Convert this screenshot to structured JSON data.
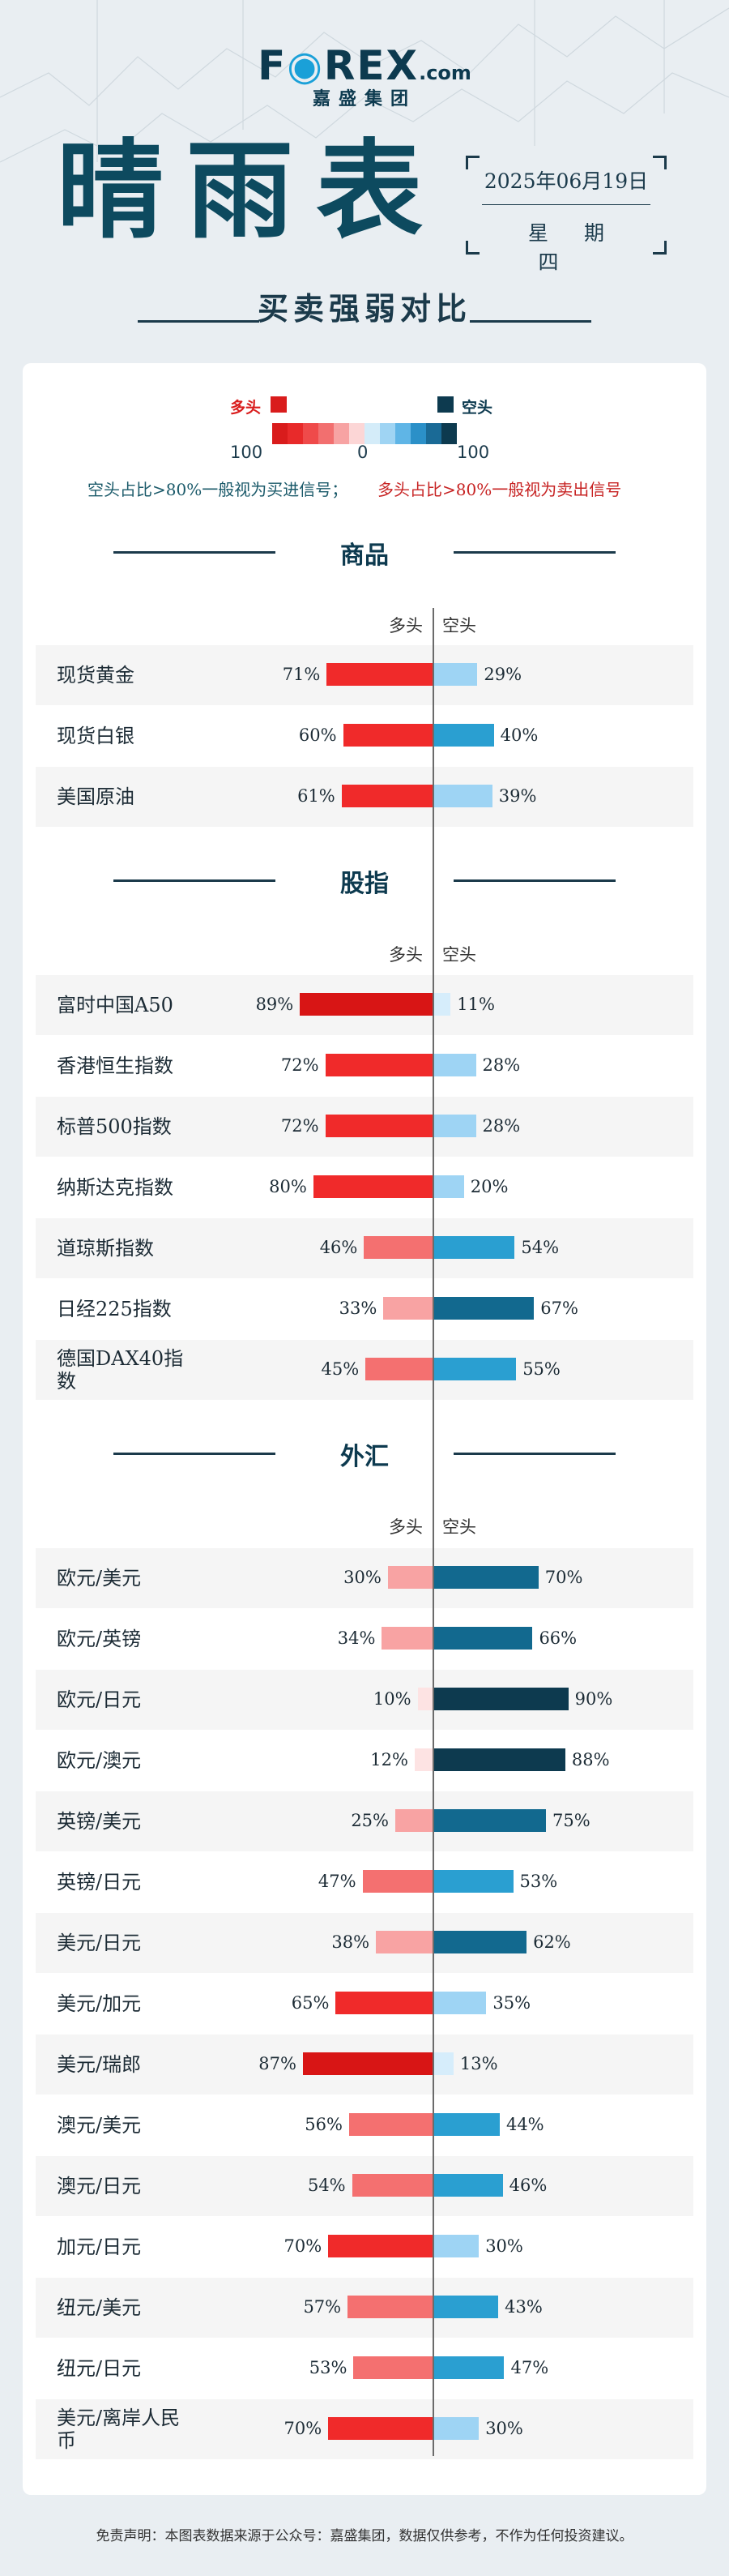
{
  "brand": {
    "name_part1": "F",
    "name_part2": "REX",
    "suffix": ".com",
    "sub": "嘉盛集团"
  },
  "title": "晴雨表",
  "date": "2025年06月19日",
  "weekday": "星期四",
  "subtitle": "买卖强弱对比",
  "legend": {
    "long_label": "多头",
    "short_label": "空头",
    "left_num": "100",
    "mid_num": "0",
    "right_num": "100",
    "scale_colors": [
      "#d91c1c",
      "#e82a2a",
      "#ef4a4a",
      "#f26f6f",
      "#f7a3a3",
      "#fcd6d6",
      "#d4ecf9",
      "#9fd4f3",
      "#5fb5e6",
      "#2b90c8",
      "#1a6a96",
      "#0d3a4f"
    ],
    "long_color": "#d91c1c",
    "short_color": "#0d3a4f"
  },
  "notes": {
    "short_note": "空头占比>80%一般视为买进信号；",
    "long_note": "多头占比>80%一般视为卖出信号"
  },
  "col_long": "多头",
  "col_short": "空头",
  "sections": [
    {
      "title": "商品"
    },
    {
      "title": "股指"
    },
    {
      "title": "外汇"
    }
  ],
  "chart_data": {
    "type": "bar",
    "series": [
      {
        "name": "多头"
      },
      {
        "name": "空头"
      }
    ],
    "groups": [
      {
        "section": "商品",
        "items": [
          {
            "name": "现货黄金",
            "long": 71,
            "short": 29
          },
          {
            "name": "现货白银",
            "long": 60,
            "short": 40
          },
          {
            "name": "美国原油",
            "long": 61,
            "short": 39
          }
        ]
      },
      {
        "section": "股指",
        "items": [
          {
            "name": "富时中国A50",
            "long": 89,
            "short": 11
          },
          {
            "name": "香港恒生指数",
            "long": 72,
            "short": 28
          },
          {
            "name": "标普500指数",
            "long": 72,
            "short": 28
          },
          {
            "name": "纳斯达克指数",
            "long": 80,
            "short": 20
          },
          {
            "name": "道琼斯指数",
            "long": 46,
            "short": 54
          },
          {
            "name": "日经225指数",
            "long": 33,
            "short": 67
          },
          {
            "name": "德国DAX40指数",
            "long": 45,
            "short": 55
          }
        ]
      },
      {
        "section": "外汇",
        "items": [
          {
            "name": "欧元/美元",
            "long": 30,
            "short": 70
          },
          {
            "name": "欧元/英镑",
            "long": 34,
            "short": 66
          },
          {
            "name": "欧元/日元",
            "long": 10,
            "short": 90
          },
          {
            "name": "欧元/澳元",
            "long": 12,
            "short": 88
          },
          {
            "name": "英镑/美元",
            "long": 25,
            "short": 75
          },
          {
            "name": "英镑/日元",
            "long": 47,
            "short": 53
          },
          {
            "name": "美元/日元",
            "long": 38,
            "short": 62
          },
          {
            "name": "美元/加元",
            "long": 65,
            "short": 35
          },
          {
            "name": "美元/瑞郎",
            "long": 87,
            "short": 13
          },
          {
            "name": "澳元/美元",
            "long": 56,
            "short": 44
          },
          {
            "name": "澳元/日元",
            "long": 54,
            "short": 46
          },
          {
            "name": "加元/日元",
            "long": 70,
            "short": 30
          },
          {
            "name": "纽元/美元",
            "long": 57,
            "short": 43
          },
          {
            "name": "纽元/日元",
            "long": 53,
            "short": 47
          },
          {
            "name": "美元/离岸人民币",
            "long": 70,
            "short": 30
          }
        ]
      }
    ]
  },
  "footer": "免责声明：本图表数据来源于公众号：嘉盛集团，数据仅供参考，不作为任何投资建议。"
}
